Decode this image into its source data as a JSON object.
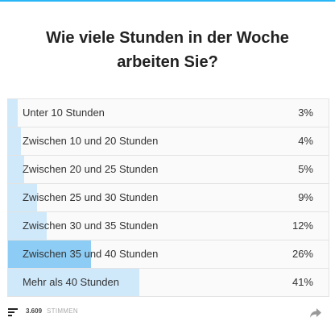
{
  "poll": {
    "question": "Wie viele Stunden in der Woche arbeiten Sie?",
    "options": [
      {
        "label": "Unter 10 Stunden",
        "percent_text": "3%",
        "percent": 3
      },
      {
        "label": "Zwischen 10 und 20 Stunden",
        "percent_text": "4%",
        "percent": 4
      },
      {
        "label": "Zwischen 20 und 25 Stunden",
        "percent_text": "5%",
        "percent": 5
      },
      {
        "label": "Zwischen 25 und 30 Stunden",
        "percent_text": "9%",
        "percent": 9
      },
      {
        "label": "Zwischen 30 und 35 Stunden",
        "percent_text": "12%",
        "percent": 12
      },
      {
        "label": "Zwischen 35 und 40 Stunden",
        "percent_text": "26%",
        "percent": 26
      },
      {
        "label": "Mehr als 40 Stunden",
        "percent_text": "41%",
        "percent": 41
      }
    ]
  },
  "footer": {
    "votes_count": "3.609",
    "votes_label": "STIMMEN",
    "results_icon": "bar-list-icon",
    "share_icon": "share-arrow-icon"
  },
  "colors": {
    "accent": "#29b6f6",
    "bar_fill": "#cfe9fb",
    "bar_fill_highlight": "#8dccf4"
  }
}
